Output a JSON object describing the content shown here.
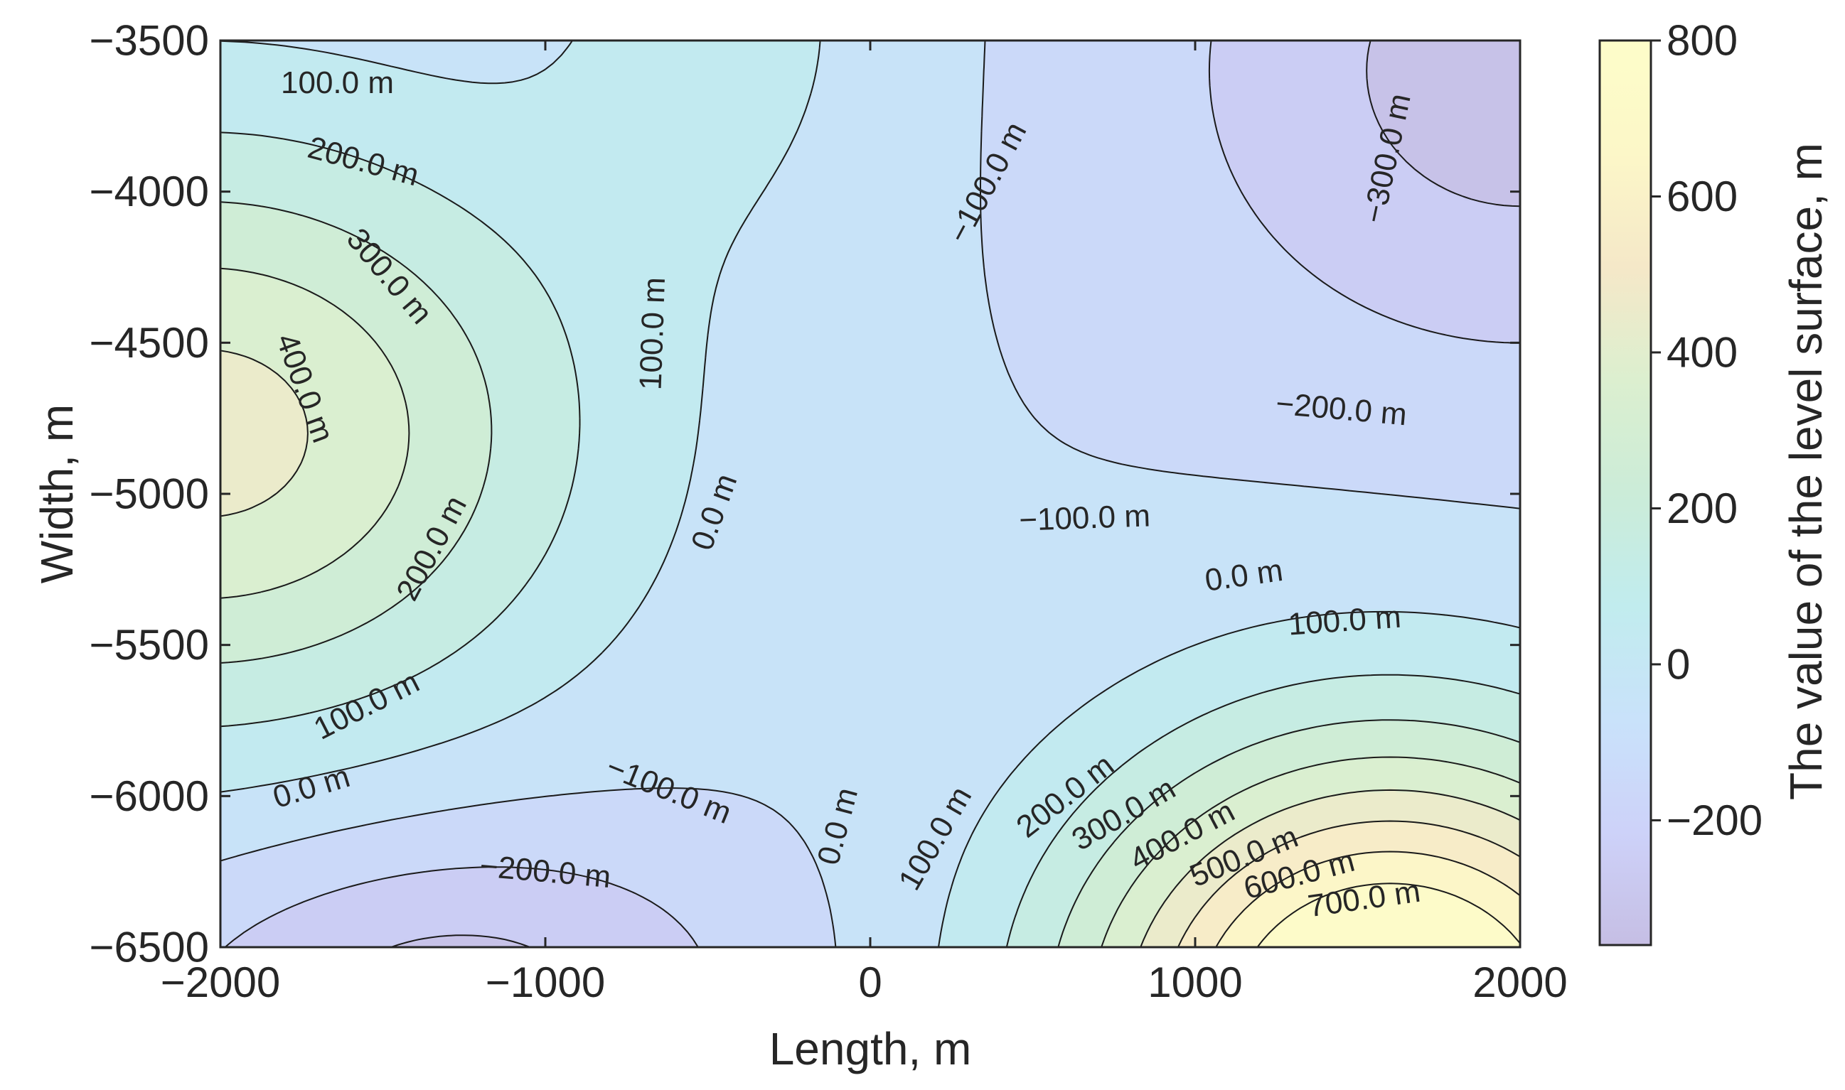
{
  "chart_data": {
    "type": "contour",
    "title": "",
    "xlabel": "Length, m",
    "ylabel": "Width, m",
    "colorbar_label": "The value of the level surface, m",
    "xlim": [
      -2000,
      2000
    ],
    "ylim": [
      -6500,
      -3500
    ],
    "x_ticks": [
      -2000,
      -1000,
      0,
      1000,
      2000
    ],
    "x_tick_labels": [
      "−2000",
      "−1000",
      "0",
      "1000",
      "2000"
    ],
    "y_ticks": [
      -3500,
      -4000,
      -4500,
      -5000,
      -5500,
      -6000,
      -6500
    ],
    "y_tick_labels": [
      "−3500",
      "−4000",
      "−4500",
      "−5000",
      "−5500",
      "−6000",
      "−6500"
    ],
    "colorbar_range": [
      -360,
      800
    ],
    "colorbar_ticks": [
      800,
      600,
      400,
      200,
      0,
      -200
    ],
    "colorbar_tick_labels": [
      "800",
      "600",
      "400",
      "200",
      "0",
      "−200"
    ],
    "colormap": [
      "#c6bee4",
      "#cdd2f9",
      "#c9e2fa",
      "#c1ecee",
      "#cbecd8",
      "#dcefcf",
      "#f5e8c8",
      "#fcf7c8",
      "#fdfdc9"
    ],
    "levels": [
      -300,
      -200,
      -100,
      0,
      100,
      200,
      300,
      400,
      500,
      600,
      700
    ],
    "contour_labels": [
      {
        "text": "100.0 m",
        "level": 100,
        "x": -1640,
        "y": -3640,
        "angle": 0
      },
      {
        "text": "200.0 m",
        "level": 200,
        "x": -1560,
        "y": -3900,
        "angle": 15
      },
      {
        "text": "300.0 m",
        "level": 300,
        "x": -1480,
        "y": -4280,
        "angle": 50
      },
      {
        "text": "400.0 m",
        "level": 400,
        "x": -1740,
        "y": -4650,
        "angle": 70
      },
      {
        "text": "100.0 m",
        "level": 100,
        "x": -670,
        "y": -4470,
        "angle": -88
      },
      {
        "text": "200.0 m",
        "level": 200,
        "x": -1350,
        "y": -5180,
        "angle": -62
      },
      {
        "text": "100.0 m",
        "level": 100,
        "x": -1550,
        "y": -5700,
        "angle": -27
      },
      {
        "text": "0.0 m",
        "level": 0,
        "x": -1720,
        "y": -5970,
        "angle": -17
      },
      {
        "text": "0.0 m",
        "level": 0,
        "x": -480,
        "y": -5060,
        "angle": -70
      },
      {
        "text": "−100.0 m",
        "level": -100,
        "x": -620,
        "y": -5980,
        "angle": 22
      },
      {
        "text": "−200.0 m",
        "level": -200,
        "x": -1000,
        "y": -6250,
        "angle": 5
      },
      {
        "text": "−100.0 m",
        "level": -100,
        "x": 360,
        "y": -3970,
        "angle": -62
      },
      {
        "text": "−300.0 m",
        "level": -300,
        "x": 1590,
        "y": -3890,
        "angle": -78
      },
      {
        "text": "−200.0 m",
        "level": -200,
        "x": 1450,
        "y": -4720,
        "angle": 5
      },
      {
        "text": "−100.0 m",
        "level": -100,
        "x": 660,
        "y": -5080,
        "angle": -2
      },
      {
        "text": "0.0 m",
        "level": 0,
        "x": 1150,
        "y": -5270,
        "angle": -8
      },
      {
        "text": "100.0 m",
        "level": 100,
        "x": 1460,
        "y": -5420,
        "angle": -4
      },
      {
        "text": "0.0 m",
        "level": 0,
        "x": -100,
        "y": -6100,
        "angle": -75
      },
      {
        "text": "100.0 m",
        "level": 100,
        "x": 200,
        "y": -6140,
        "angle": -60
      },
      {
        "text": "200.0 m",
        "level": 200,
        "x": 600,
        "y": -6000,
        "angle": -38
      },
      {
        "text": "300.0 m",
        "level": 300,
        "x": 780,
        "y": -6060,
        "angle": -30
      },
      {
        "text": "400.0 m",
        "level": 400,
        "x": 960,
        "y": -6130,
        "angle": -28
      },
      {
        "text": "500.0 m",
        "level": 500,
        "x": 1150,
        "y": -6200,
        "angle": -22
      },
      {
        "text": "600.0 m",
        "level": 600,
        "x": 1320,
        "y": -6260,
        "angle": -15
      },
      {
        "text": "700.0 m",
        "level": 700,
        "x": 1520,
        "y": -6340,
        "angle": -8
      }
    ]
  }
}
